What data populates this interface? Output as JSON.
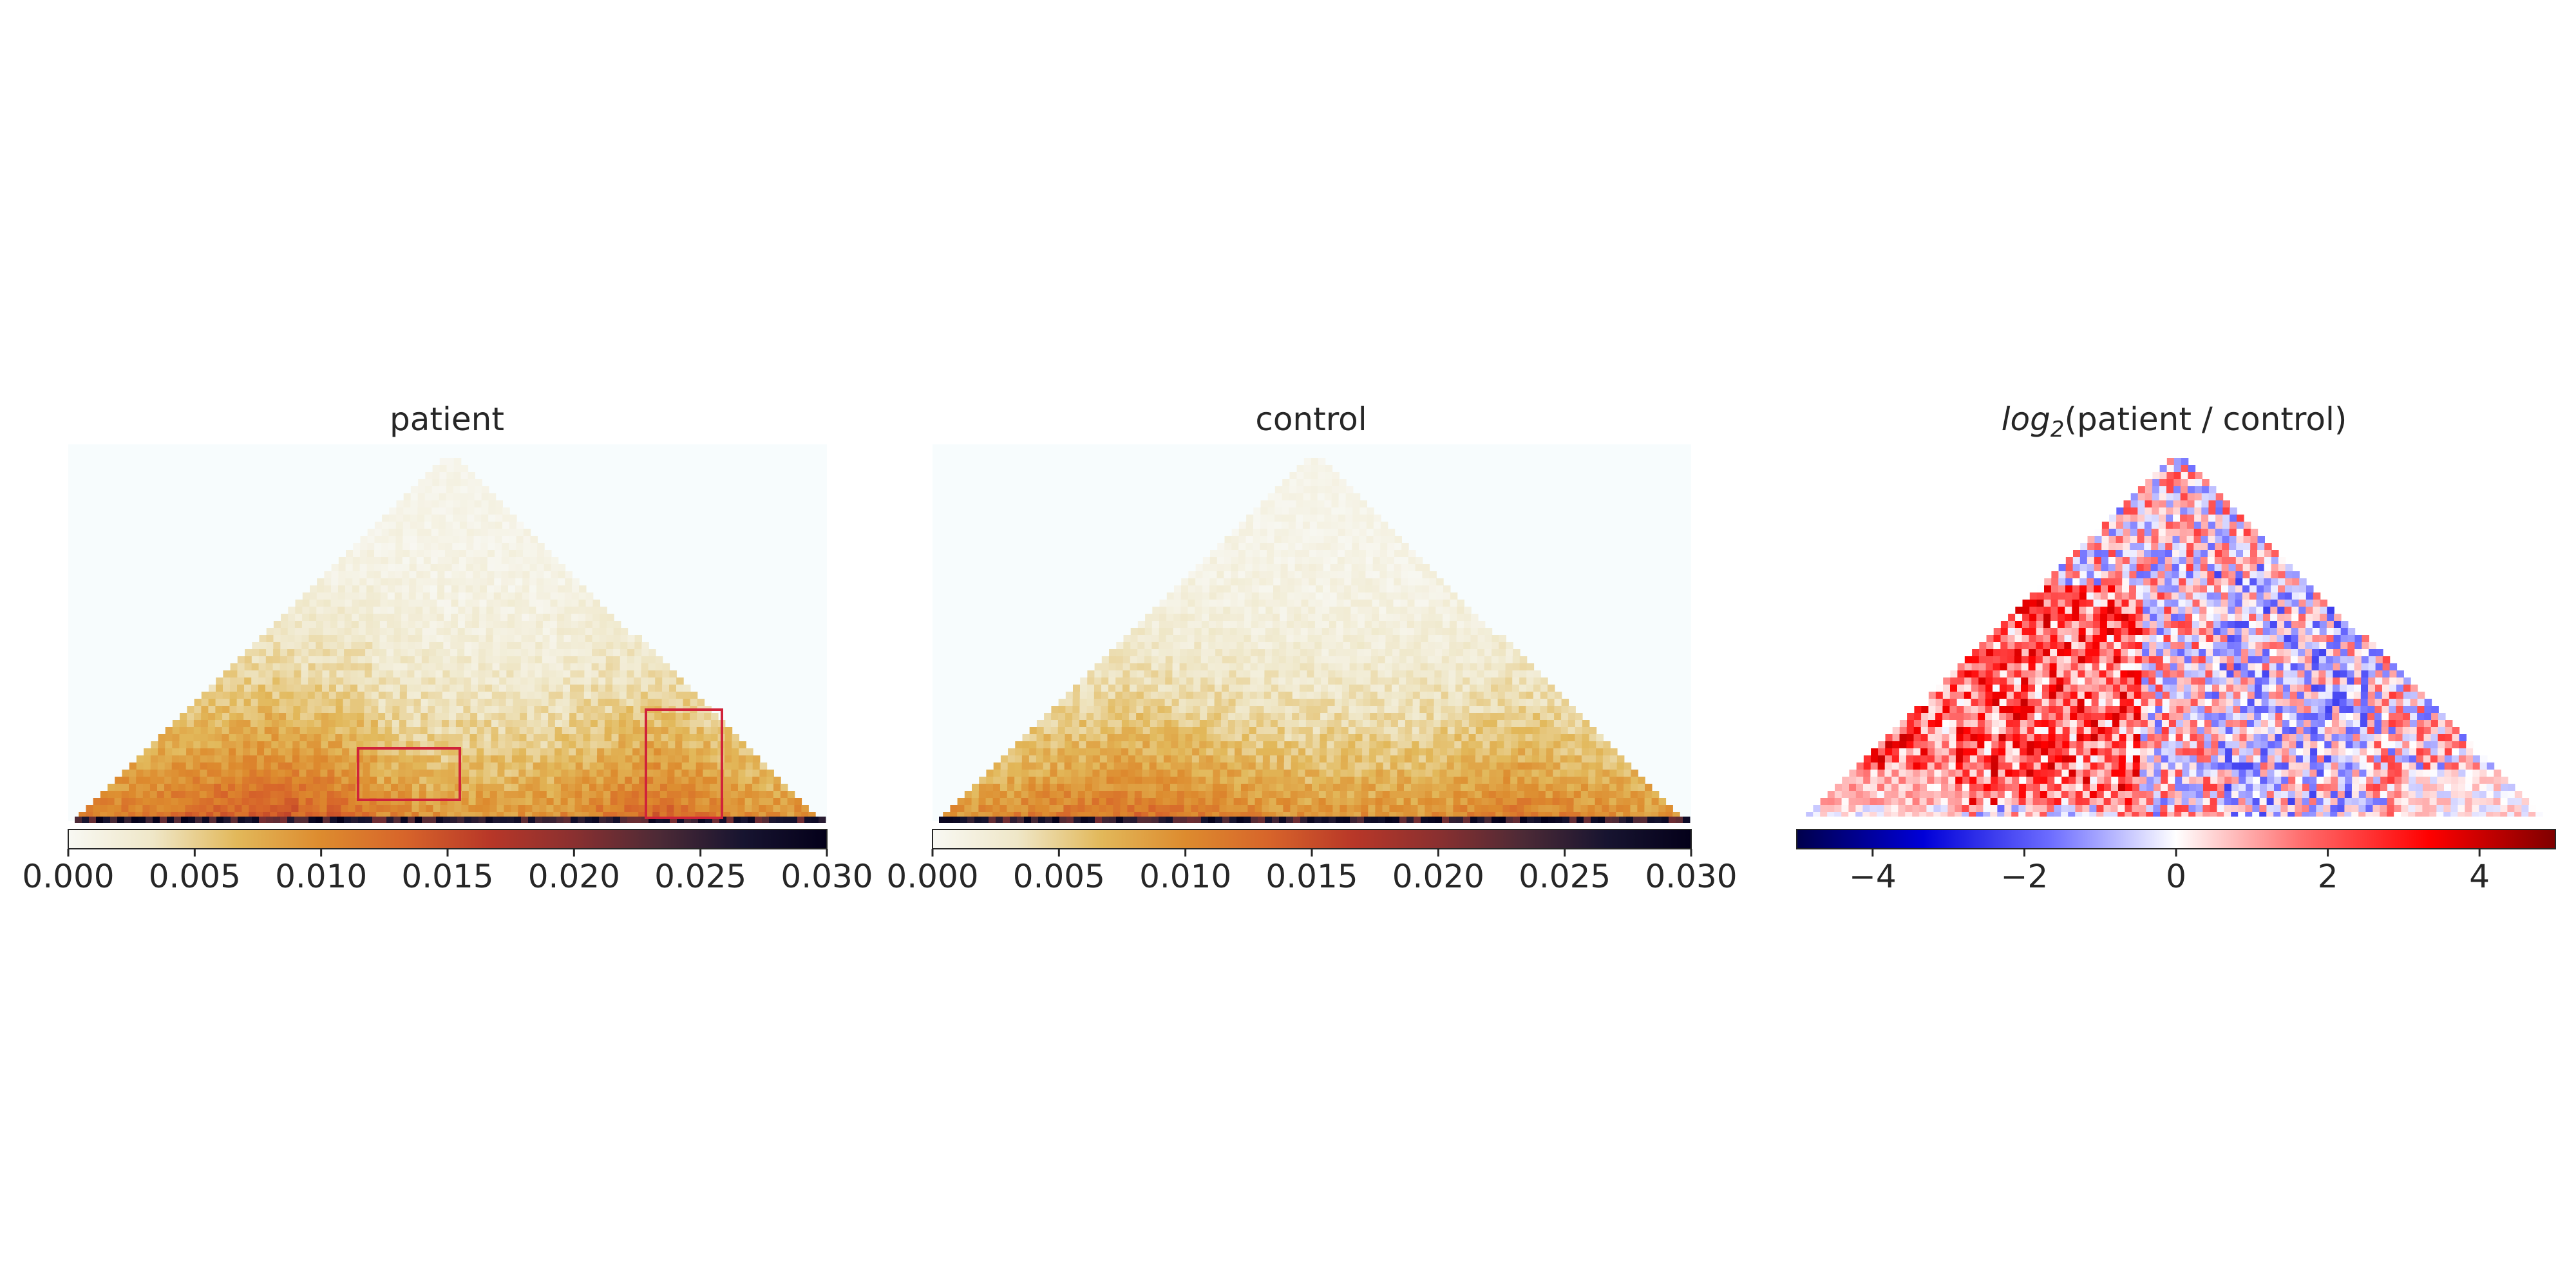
{
  "chart_data": [
    {
      "type": "heatmap",
      "title": "patient",
      "description_shape": "triangular contact map",
      "colormap": [
        "#f8f8f3",
        "#efe7c8",
        "#e2b85a",
        "#dd8b2e",
        "#d7642a",
        "#b83728",
        "#8a3030",
        "#4d2a36",
        "#171430",
        "#04001a"
      ],
      "value_range": [
        0,
        0.03
      ],
      "colorbar_ticks": [
        "0.000",
        "0.005",
        "0.010",
        "0.015",
        "0.020",
        "0.025",
        "0.030"
      ],
      "colorbar_tick_values": [
        0,
        0.005,
        0.01,
        0.015,
        0.02,
        0.025,
        0.03
      ],
      "regions_of_interest_color": "#d0233a"
    },
    {
      "type": "heatmap",
      "title": "control",
      "colormap": [
        "#f8f8f3",
        "#efe7c8",
        "#e2b85a",
        "#dd8b2e",
        "#d7642a",
        "#b83728",
        "#8a3030",
        "#4d2a36",
        "#171430",
        "#04001a"
      ],
      "value_range": [
        0,
        0.03
      ],
      "colorbar_ticks": [
        "0.000",
        "0.005",
        "0.010",
        "0.015",
        "0.020",
        "0.025",
        "0.030"
      ],
      "colorbar_tick_values": [
        0,
        0.005,
        0.01,
        0.015,
        0.02,
        0.025,
        0.03
      ]
    },
    {
      "type": "heatmap",
      "title_italic": "log",
      "title_sub": "2",
      "title_rest": "(patient / control)",
      "colormap": [
        "#00004c",
        "#0000d8",
        "#6c6cff",
        "#ffffff",
        "#ff6c6c",
        "#ff0000",
        "#7f0000"
      ],
      "value_range": [
        -5,
        5
      ],
      "colorbar_ticks": [
        "−4",
        "−2",
        "0",
        "2",
        "4"
      ],
      "colorbar_tick_values": [
        -4,
        -2,
        0,
        2,
        4
      ]
    }
  ]
}
